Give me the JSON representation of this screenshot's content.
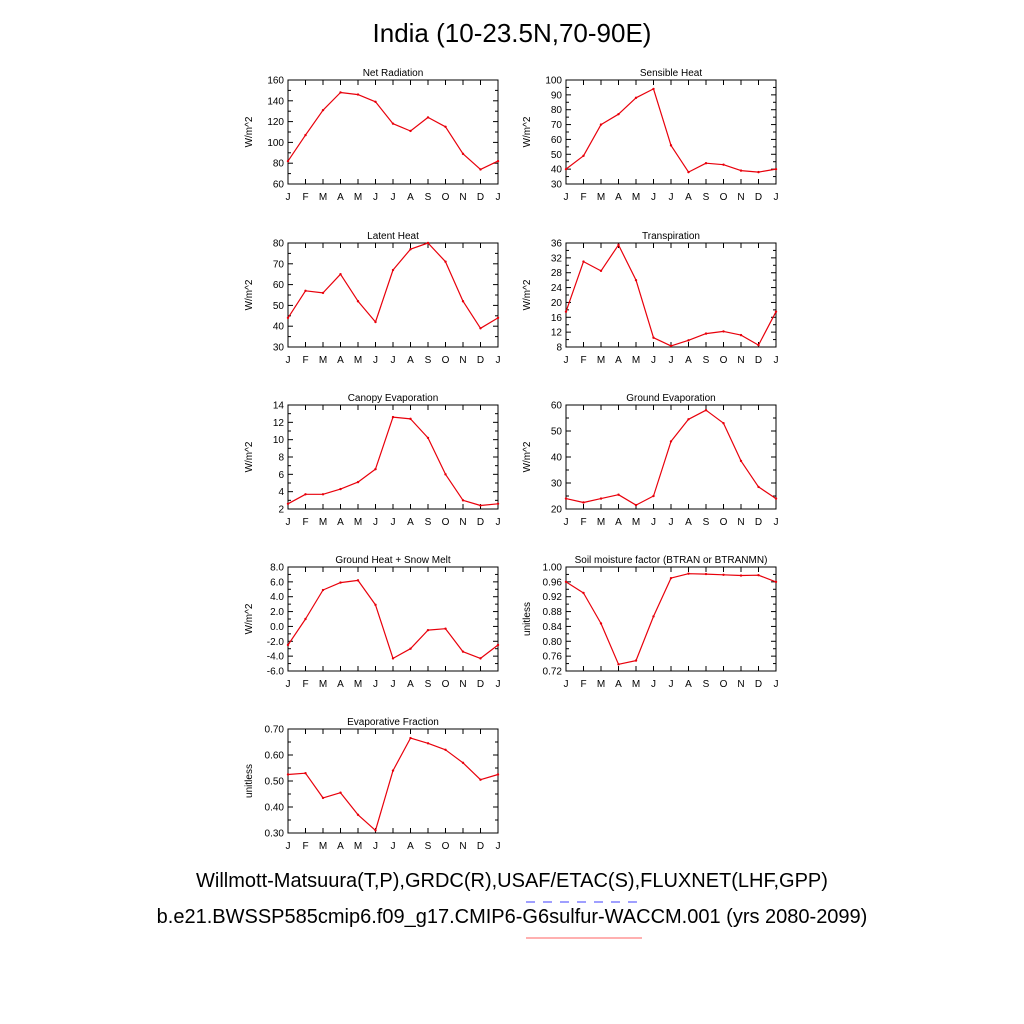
{
  "title": "India (10-23.5N,70-90E)",
  "footer": {
    "obs": "Willmott-Matsuura(T,P),GRDC(R),USAF/ETAC(S),FLUXNET(LHF,GPP)",
    "case": "b.e21.BWSSP585cmip6.f09_g17.CMIP6-G6sulfur-WACCM.001 (yrs 2080-2099)"
  },
  "colors": {
    "model": "#e8000b",
    "obs": "#6666ff",
    "axis": "#000000"
  },
  "chart_data": [
    {
      "type": "line",
      "title": "Net Radiation",
      "ylabel": "W/m^2",
      "categories": [
        "J",
        "F",
        "M",
        "A",
        "M",
        "J",
        "J",
        "A",
        "S",
        "O",
        "N",
        "D",
        "J"
      ],
      "ylim": [
        60,
        160
      ],
      "yticks": [
        60,
        80,
        100,
        120,
        140,
        160
      ],
      "yticklabels": [
        "60",
        "80",
        "100",
        "120",
        "140",
        "160"
      ],
      "values": [
        82,
        107,
        131,
        148,
        146,
        139,
        118,
        111,
        124,
        115,
        89,
        74,
        82
      ]
    },
    {
      "type": "line",
      "title": "Sensible Heat",
      "ylabel": "W/m^2",
      "categories": [
        "J",
        "F",
        "M",
        "A",
        "M",
        "J",
        "J",
        "A",
        "S",
        "O",
        "N",
        "D",
        "J"
      ],
      "ylim": [
        30,
        100
      ],
      "yticks": [
        30,
        40,
        50,
        60,
        70,
        80,
        90,
        100
      ],
      "yticklabels": [
        "30",
        "40",
        "50",
        "60",
        "70",
        "80",
        "90",
        "100"
      ],
      "values": [
        40,
        49,
        70,
        77,
        88,
        94,
        56,
        38,
        44,
        43,
        39,
        38,
        40
      ]
    },
    {
      "type": "line",
      "title": "Latent Heat",
      "ylabel": "W/m^2",
      "categories": [
        "J",
        "F",
        "M",
        "A",
        "M",
        "J",
        "J",
        "A",
        "S",
        "O",
        "N",
        "D",
        "J"
      ],
      "ylim": [
        30,
        80
      ],
      "yticks": [
        30,
        40,
        50,
        60,
        70,
        80
      ],
      "yticklabels": [
        "30",
        "40",
        "50",
        "60",
        "70",
        "80"
      ],
      "values": [
        44,
        57,
        56,
        65,
        52,
        42,
        67,
        77,
        80,
        71,
        52,
        39,
        44
      ]
    },
    {
      "type": "line",
      "title": "Transpiration",
      "ylabel": "W/m^2",
      "categories": [
        "J",
        "F",
        "M",
        "A",
        "M",
        "J",
        "J",
        "A",
        "S",
        "O",
        "N",
        "D",
        "J"
      ],
      "ylim": [
        8,
        36
      ],
      "yticks": [
        8,
        12,
        16,
        20,
        24,
        28,
        32,
        36
      ],
      "yticklabels": [
        "8",
        "12",
        "16",
        "20",
        "24",
        "28",
        "32",
        "36"
      ],
      "values": [
        17.5,
        31,
        28.5,
        35.5,
        26,
        10.5,
        8.3,
        9.8,
        11.6,
        12.2,
        11.2,
        8.5,
        17.5
      ]
    },
    {
      "type": "line",
      "title": "Canopy Evaporation",
      "ylabel": "W/m^2",
      "categories": [
        "J",
        "F",
        "M",
        "A",
        "M",
        "J",
        "J",
        "A",
        "S",
        "O",
        "N",
        "D",
        "J"
      ],
      "ylim": [
        2,
        14
      ],
      "yticks": [
        2,
        4,
        6,
        8,
        10,
        12,
        14
      ],
      "yticklabels": [
        "2",
        "4",
        "6",
        "8",
        "10",
        "12",
        "14"
      ],
      "values": [
        2.6,
        3.7,
        3.7,
        4.3,
        5.1,
        6.6,
        12.6,
        12.4,
        10.2,
        6.0,
        3.0,
        2.4,
        2.6
      ]
    },
    {
      "type": "line",
      "title": "Ground Evaporation",
      "ylabel": "W/m^2",
      "categories": [
        "J",
        "F",
        "M",
        "A",
        "M",
        "J",
        "J",
        "A",
        "S",
        "O",
        "N",
        "D",
        "J"
      ],
      "ylim": [
        20,
        60
      ],
      "yticks": [
        20,
        30,
        40,
        50,
        60
      ],
      "yticklabels": [
        "20",
        "30",
        "40",
        "50",
        "60"
      ],
      "values": [
        24,
        22.5,
        24,
        25.5,
        21.5,
        25,
        46,
        54.5,
        58,
        53,
        38.5,
        28.5,
        24
      ]
    },
    {
      "type": "line",
      "title": "Ground Heat + Snow Melt",
      "ylabel": "W/m^2",
      "categories": [
        "J",
        "F",
        "M",
        "A",
        "M",
        "J",
        "J",
        "A",
        "S",
        "O",
        "N",
        "D",
        "J"
      ],
      "ylim": [
        -6,
        8
      ],
      "yticks": [
        -6,
        -4,
        -2,
        0,
        2,
        4,
        6,
        8
      ],
      "yticklabels": [
        "-6.0",
        "-4.0",
        "-2.0",
        "0.0",
        "2.0",
        "4.0",
        "6.0",
        "8.0"
      ],
      "values": [
        -2.5,
        1.0,
        4.9,
        5.9,
        6.2,
        2.9,
        -4.3,
        -3.0,
        -0.5,
        -0.3,
        -3.4,
        -4.3,
        -2.5
      ]
    },
    {
      "type": "line",
      "title": "Soil moisture factor (BTRAN or BTRANMN)",
      "ylabel": "unitless",
      "categories": [
        "J",
        "F",
        "M",
        "A",
        "M",
        "J",
        "J",
        "A",
        "S",
        "O",
        "N",
        "D",
        "J"
      ],
      "ylim": [
        0.72,
        1.0
      ],
      "yticks": [
        0.72,
        0.76,
        0.8,
        0.84,
        0.88,
        0.92,
        0.96,
        1.0
      ],
      "yticklabels": [
        "0.72",
        "0.76",
        "0.80",
        "0.84",
        "0.88",
        "0.92",
        "0.96",
        "1.00"
      ],
      "values": [
        0.96,
        0.93,
        0.848,
        0.738,
        0.748,
        0.867,
        0.97,
        0.982,
        0.981,
        0.979,
        0.977,
        0.978,
        0.96
      ]
    },
    {
      "type": "line",
      "title": "Evaporative Fraction",
      "ylabel": "unitless",
      "categories": [
        "J",
        "F",
        "M",
        "A",
        "M",
        "J",
        "J",
        "A",
        "S",
        "O",
        "N",
        "D",
        "J"
      ],
      "ylim": [
        0.3,
        0.7
      ],
      "yticks": [
        0.3,
        0.4,
        0.5,
        0.6,
        0.7
      ],
      "yticklabels": [
        "0.30",
        "0.40",
        "0.50",
        "0.60",
        "0.70"
      ],
      "values": [
        0.525,
        0.53,
        0.435,
        0.455,
        0.37,
        0.31,
        0.54,
        0.665,
        0.645,
        0.62,
        0.57,
        0.505,
        0.525
      ]
    }
  ]
}
